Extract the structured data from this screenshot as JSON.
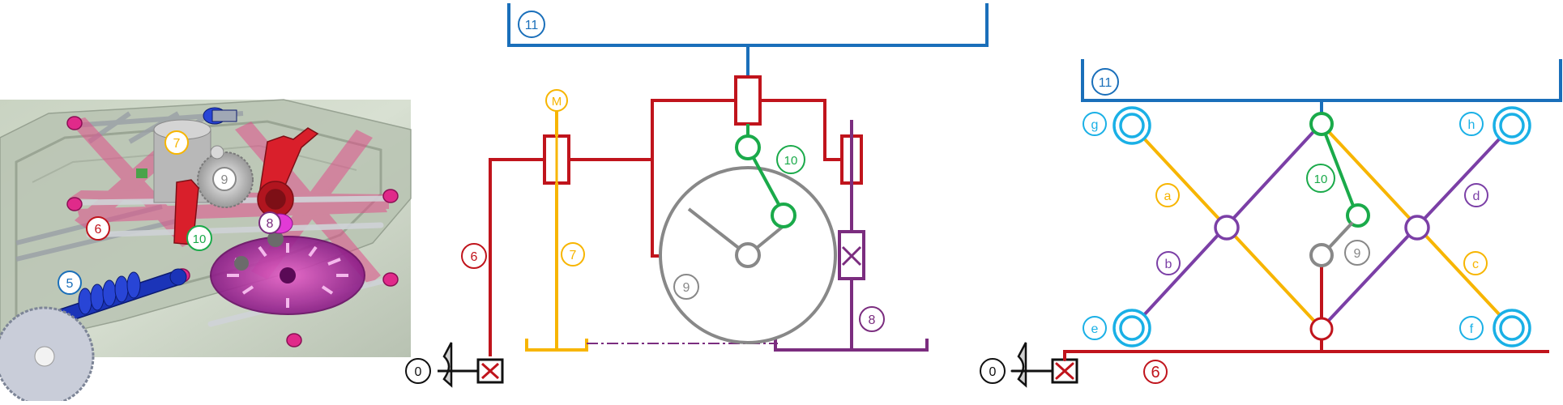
{
  "colors": {
    "blue": "#1a6fba",
    "red": "#c0141c",
    "yellow": "#f7b500",
    "purple": "#7b2d7f",
    "green": "#1aaa4a",
    "gray": "#888888",
    "cyan": "#1ab0e6",
    "violet": "#7b3fa6",
    "black": "#111111"
  },
  "render": {
    "labels": {
      "l5": "5",
      "l6": "6",
      "l7": "7",
      "l8": "8",
      "l9": "9",
      "l10": "10",
      "m": "M",
      "m6": "6",
      "m7": "7",
      "m8": "8",
      "m9": "9",
      "m10": "10",
      "m11": "11",
      "m0": "0",
      "r11": "11",
      "r10": "10",
      "r9": "9",
      "r6": "6",
      "r0": "0",
      "ra": "a",
      "rb": "b",
      "rc": "c",
      "rd": "d",
      "re": "e",
      "rf": "f",
      "rg": "g",
      "rh": "h"
    }
  }
}
